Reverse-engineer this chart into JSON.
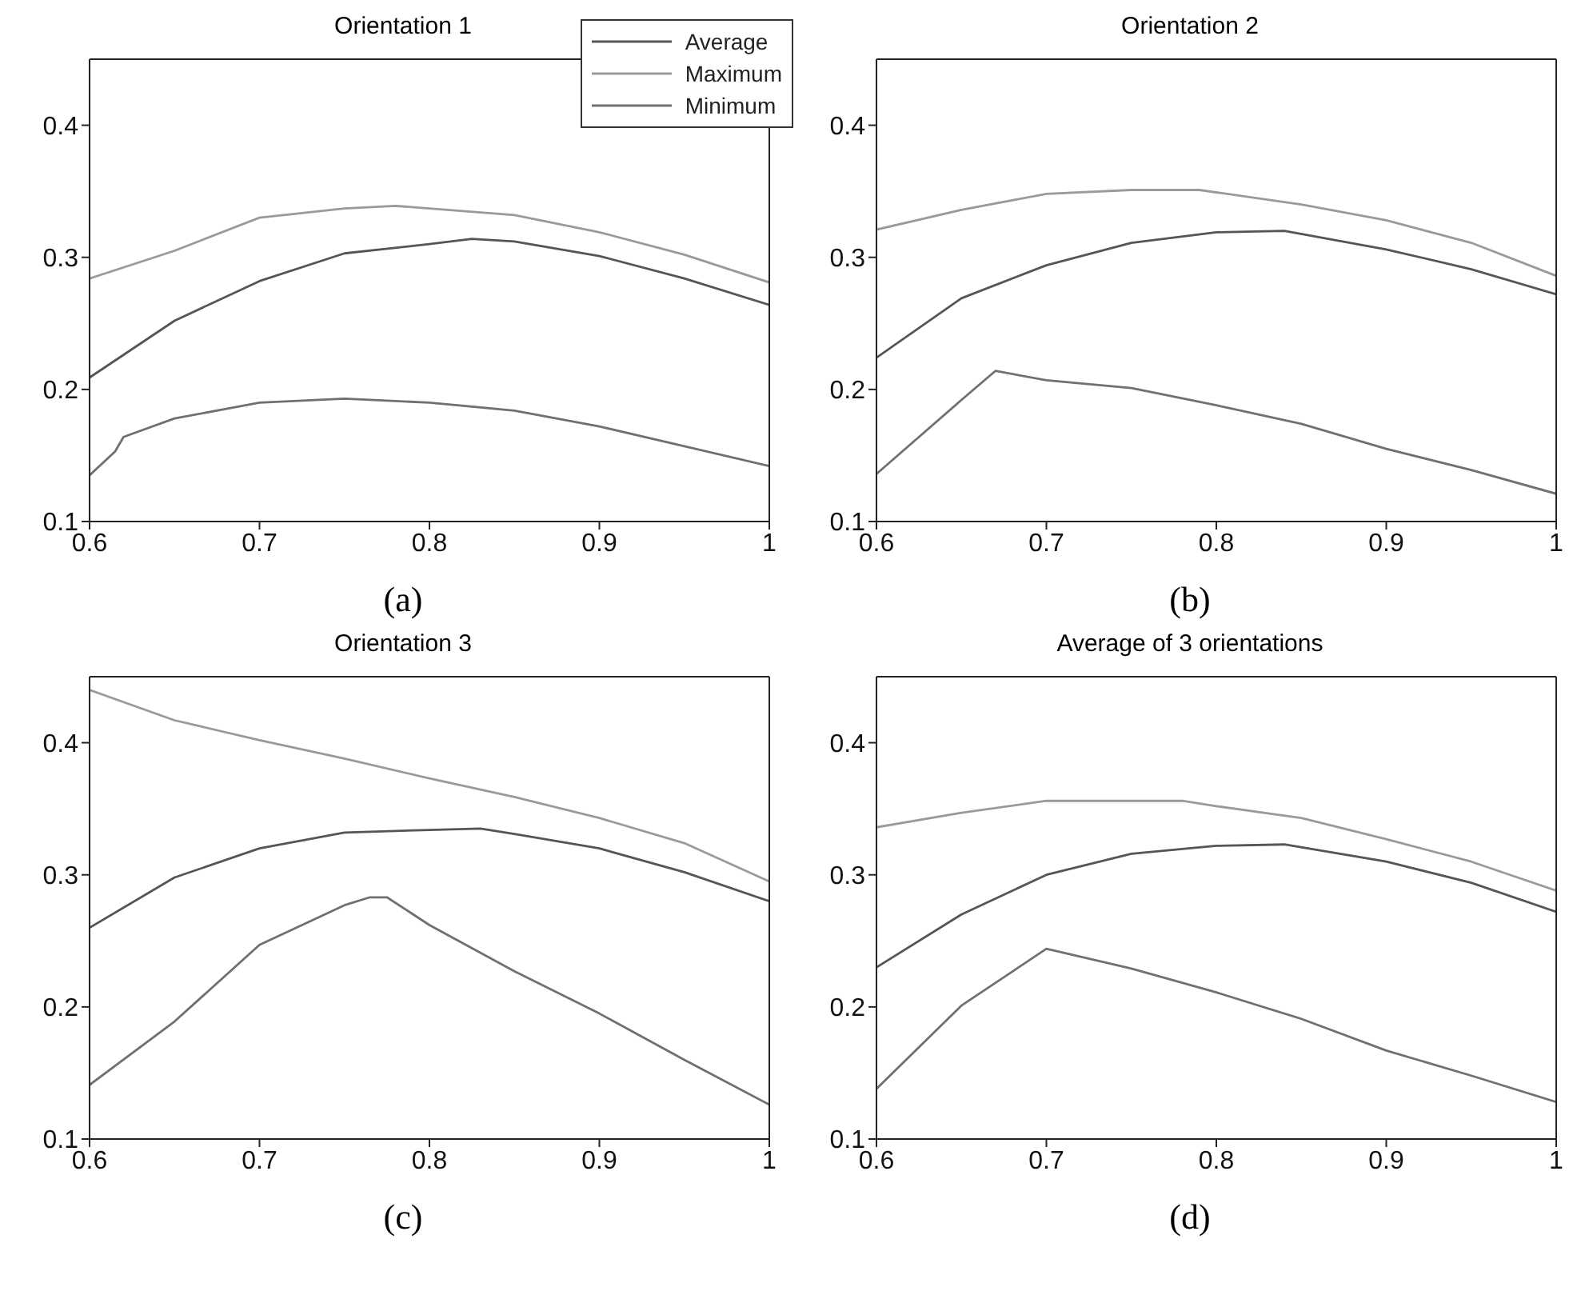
{
  "chart_data": [
    {
      "type": "line",
      "title": "Orientation 1",
      "xlim": [
        0.6,
        1
      ],
      "ylim": [
        0.1,
        0.45
      ],
      "xticks": [
        0.6,
        0.7,
        0.8,
        0.9,
        1
      ],
      "yticks": [
        0.1,
        0.2,
        0.3,
        0.4
      ],
      "legend": "top right",
      "marker": "none",
      "line_style": "solid",
      "annotations": [
        "(a)"
      ],
      "series": [
        {
          "name": "Average",
          "color": "#555555",
          "x": [
            0.6,
            0.65,
            0.7,
            0.75,
            0.8,
            0.825,
            0.85,
            0.9,
            0.95,
            1
          ],
          "values": [
            0.209,
            0.252,
            0.282,
            0.303,
            0.31,
            0.314,
            0.312,
            0.301,
            0.284,
            0.264
          ]
        },
        {
          "name": "Maximum",
          "color": "#9a9a9a",
          "x": [
            0.6,
            0.65,
            0.7,
            0.75,
            0.78,
            0.8,
            0.85,
            0.9,
            0.95,
            1
          ],
          "values": [
            0.284,
            0.305,
            0.33,
            0.337,
            0.339,
            0.337,
            0.332,
            0.319,
            0.302,
            0.281
          ]
        },
        {
          "name": "Minimum",
          "color": "#707070",
          "x": [
            0.6,
            0.615,
            0.62,
            0.65,
            0.7,
            0.75,
            0.8,
            0.85,
            0.9,
            0.95,
            1
          ],
          "values": [
            0.135,
            0.153,
            0.164,
            0.178,
            0.19,
            0.193,
            0.19,
            0.184,
            0.172,
            0.157,
            0.142
          ]
        }
      ]
    },
    {
      "type": "line",
      "title": "Orientation 2",
      "xlim": [
        0.6,
        1
      ],
      "ylim": [
        0.1,
        0.45
      ],
      "xticks": [
        0.6,
        0.7,
        0.8,
        0.9,
        1
      ],
      "yticks": [
        0.1,
        0.2,
        0.3,
        0.4
      ],
      "marker": "none",
      "line_style": "solid",
      "annotations": [
        "(b)"
      ],
      "series": [
        {
          "color": "#555555",
          "x": [
            0.6,
            0.65,
            0.7,
            0.75,
            0.8,
            0.84,
            0.9,
            0.95,
            1
          ],
          "values": [
            0.224,
            0.269,
            0.294,
            0.311,
            0.319,
            0.32,
            0.306,
            0.291,
            0.272
          ]
        },
        {
          "color": "#9a9a9a",
          "x": [
            0.6,
            0.65,
            0.7,
            0.75,
            0.79,
            0.85,
            0.9,
            0.95,
            1
          ],
          "values": [
            0.321,
            0.336,
            0.348,
            0.351,
            0.351,
            0.34,
            0.328,
            0.311,
            0.286
          ]
        },
        {
          "color": "#707070",
          "x": [
            0.6,
            0.65,
            0.67,
            0.7,
            0.75,
            0.8,
            0.85,
            0.9,
            0.95,
            1
          ],
          "values": [
            0.136,
            0.192,
            0.214,
            0.207,
            0.201,
            0.188,
            0.174,
            0.155,
            0.139,
            0.121
          ]
        }
      ]
    },
    {
      "type": "line",
      "title": "Orientation 3",
      "xlim": [
        0.6,
        1
      ],
      "ylim": [
        0.1,
        0.45
      ],
      "xticks": [
        0.6,
        0.7,
        0.8,
        0.9,
        1
      ],
      "yticks": [
        0.1,
        0.2,
        0.3,
        0.4
      ],
      "marker": "none",
      "line_style": "solid",
      "annotations": [
        "(c)"
      ],
      "series": [
        {
          "color": "#555555",
          "x": [
            0.6,
            0.65,
            0.7,
            0.75,
            0.8,
            0.83,
            0.85,
            0.9,
            0.95,
            1
          ],
          "values": [
            0.26,
            0.298,
            0.32,
            0.332,
            0.334,
            0.335,
            0.331,
            0.32,
            0.302,
            0.28
          ]
        },
        {
          "color": "#9a9a9a",
          "x": [
            0.6,
            0.65,
            0.7,
            0.75,
            0.8,
            0.85,
            0.9,
            0.95,
            1
          ],
          "values": [
            0.44,
            0.417,
            0.402,
            0.388,
            0.373,
            0.359,
            0.343,
            0.324,
            0.295
          ]
        },
        {
          "color": "#707070",
          "x": [
            0.6,
            0.65,
            0.7,
            0.75,
            0.765,
            0.775,
            0.8,
            0.85,
            0.9,
            0.95,
            1
          ],
          "values": [
            0.141,
            0.189,
            0.247,
            0.277,
            0.283,
            0.283,
            0.262,
            0.227,
            0.195,
            0.16,
            0.126
          ]
        }
      ]
    },
    {
      "type": "line",
      "title": "Average of 3 orientations",
      "xlim": [
        0.6,
        1
      ],
      "ylim": [
        0.1,
        0.45
      ],
      "xticks": [
        0.6,
        0.7,
        0.8,
        0.9,
        1
      ],
      "yticks": [
        0.1,
        0.2,
        0.3,
        0.4
      ],
      "marker": "none",
      "line_style": "solid",
      "annotations": [
        "(d)"
      ],
      "series": [
        {
          "color": "#555555",
          "x": [
            0.6,
            0.65,
            0.7,
            0.75,
            0.8,
            0.84,
            0.9,
            0.95,
            1
          ],
          "values": [
            0.23,
            0.27,
            0.3,
            0.316,
            0.322,
            0.323,
            0.31,
            0.294,
            0.272
          ]
        },
        {
          "color": "#9a9a9a",
          "x": [
            0.6,
            0.65,
            0.7,
            0.75,
            0.78,
            0.8,
            0.85,
            0.9,
            0.95,
            1
          ],
          "values": [
            0.336,
            0.347,
            0.356,
            0.356,
            0.356,
            0.352,
            0.343,
            0.327,
            0.31,
            0.288
          ]
        },
        {
          "color": "#707070",
          "x": [
            0.6,
            0.65,
            0.7,
            0.75,
            0.8,
            0.85,
            0.9,
            0.95,
            1
          ],
          "values": [
            0.138,
            0.201,
            0.244,
            0.229,
            0.211,
            0.191,
            0.167,
            0.148,
            0.128
          ]
        }
      ]
    }
  ]
}
